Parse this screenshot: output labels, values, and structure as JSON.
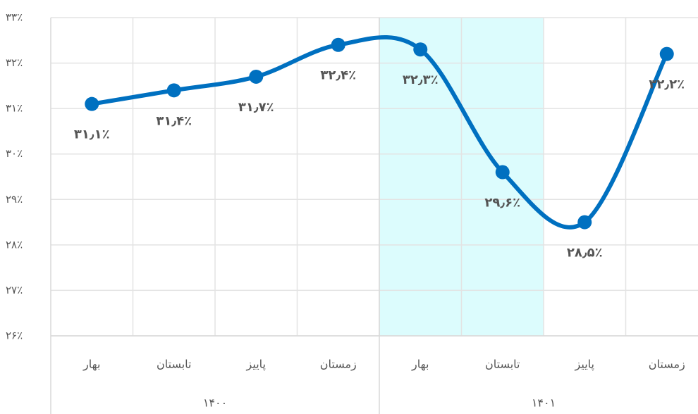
{
  "chart_data": {
    "type": "line",
    "categories": [
      "بهار",
      "تابستان",
      "پاییز",
      "زمستان",
      "بهار",
      "تابستان",
      "پاییز",
      "زمستان"
    ],
    "groups": [
      {
        "label": "۱۴۰۰",
        "categories": [
          0,
          1,
          2,
          3
        ]
      },
      {
        "label": "۱۴۰۱",
        "categories": [
          4,
          5,
          6,
          7
        ]
      }
    ],
    "series": [
      {
        "color": "#0070c0",
        "values": [
          31.1,
          31.4,
          31.7,
          32.4,
          32.3,
          29.6,
          28.5,
          32.2
        ],
        "value_labels": [
          "۳۱٫۱٪",
          "۳۱٫۴٪",
          "۳۱٫۷٪",
          "۳۲٫۴٪",
          "۳۲٫۳٪",
          "۲۹٫۶٪",
          "۲۸٫۵٪",
          "۳۲٫۲٪"
        ]
      }
    ],
    "ylim": [
      26,
      33
    ],
    "yticks": [
      {
        "value": 26,
        "label": "۲۶٪"
      },
      {
        "value": 27,
        "label": "۲۷٪"
      },
      {
        "value": 28,
        "label": "۲۸٪"
      },
      {
        "value": 29,
        "label": "۲۹٪"
      },
      {
        "value": 30,
        "label": "۳۰٪"
      },
      {
        "value": 31,
        "label": "۳۱٪"
      },
      {
        "value": 32,
        "label": "۳۲٪"
      },
      {
        "value": 33,
        "label": "۳۳٪"
      }
    ],
    "grid": true,
    "highlight_categories": [
      4,
      5
    ],
    "highlight_color": "#dcfcfd"
  }
}
